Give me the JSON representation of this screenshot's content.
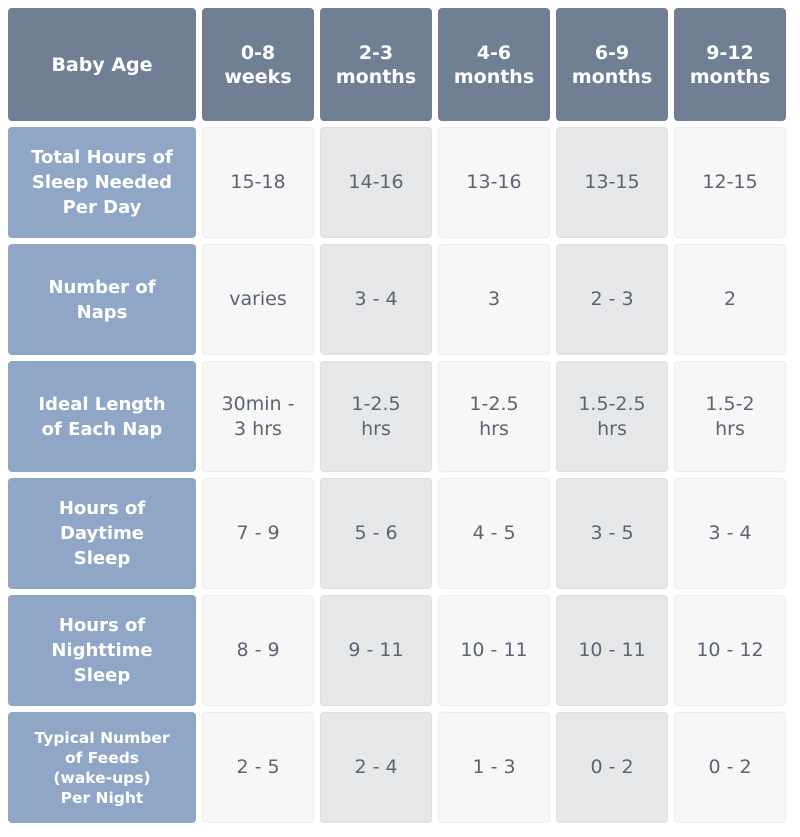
{
  "table": {
    "corner_label": "Baby Age",
    "columns": [
      "0-8\nweeks",
      "2-3\nmonths",
      "4-6\nmonths",
      "6-9\nmonths",
      "9-12\nmonths"
    ],
    "rows": [
      {
        "label": "Total Hours of\nSleep Needed\nPer Day",
        "values": [
          "15-18",
          "14-16",
          "13-16",
          "13-15",
          "12-15"
        ]
      },
      {
        "label": "Number of\nNaps",
        "values": [
          "varies",
          "3 - 4",
          "3",
          "2 - 3",
          "2"
        ]
      },
      {
        "label": "Ideal Length\nof Each Nap",
        "values": [
          "30min -\n3 hrs",
          "1-2.5\nhrs",
          "1-2.5\nhrs",
          "1.5-2.5\nhrs",
          "1.5-2\nhrs"
        ]
      },
      {
        "label": "Hours of\nDaytime\nSleep",
        "values": [
          "7 - 9",
          "5 - 6",
          "4 - 5",
          "3 - 5",
          "3 - 4"
        ]
      },
      {
        "label": "Hours of\nNighttime\nSleep",
        "values": [
          "8 - 9",
          "9 - 11",
          "10 - 11",
          "10 - 11",
          "10 - 12"
        ]
      },
      {
        "label": "Typical Number\nof Feeds\n(wake-ups)\nPer Night",
        "values": [
          "2 - 5",
          "2 - 4",
          "1 - 3",
          "0 - 2",
          "0 - 2"
        ]
      }
    ]
  },
  "colors": {
    "header_bg": "#717f95",
    "row_label_bg": "#8fa6c7",
    "cell_light": "#f7f7f7",
    "cell_dark": "#e6e7e9",
    "value_text": "#5c6474"
  }
}
